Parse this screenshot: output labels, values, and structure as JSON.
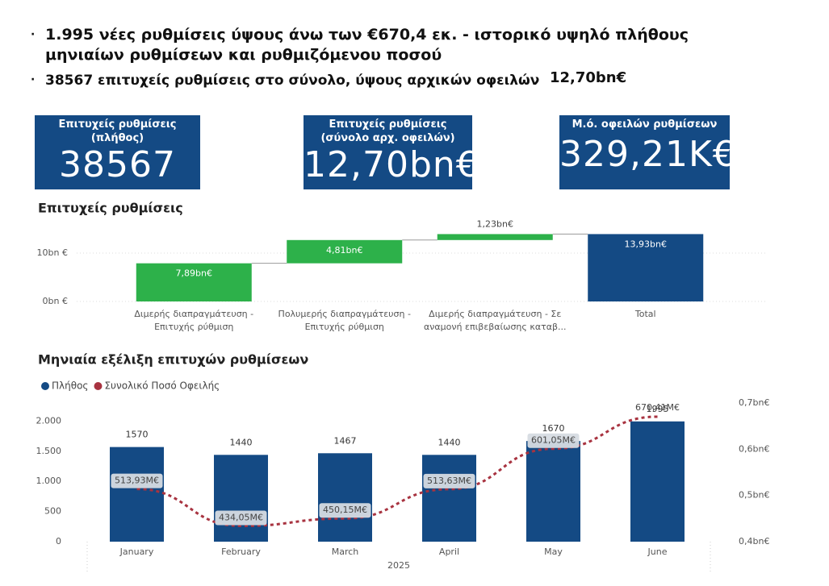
{
  "bullets": [
    {
      "text": "1.995 νέες ρυθμίσεις ύψους άνω των €670,4 εκ. - ιστορικό υψηλό πλήθους μηνιαίων ρυθμίσεων και  ρυθμιζόμενου ποσού"
    },
    {
      "text": "38567 επιτυχείς ρυθμίσεις στο σύνολο, ύψους αρχικών οφειλών",
      "highlight": "12,70bn€"
    }
  ],
  "kpis": [
    {
      "title": "Επιτυχείς ρυθμίσεις (πλήθος)",
      "value": "38567"
    },
    {
      "title": "Επιτυχείς ρυθμίσεις (σύνολο αρχ. οφειλών)",
      "value": "12,70bn€"
    },
    {
      "title": "Μ.ό. οφειλών ρυθμίσεων",
      "value": "329,21K€"
    }
  ],
  "chart_data": [
    {
      "type": "waterfall",
      "title": "Επιτυχείς ρυθμίσεις",
      "categories": [
        "Διμερής διαπραγμάτευση - Επιτυχής ρύθμιση",
        "Πολυμερής διαπραγμάτευση - Επιτυχής ρύθμιση",
        "Διμερής διαπραγμάτευση - Σε αναμονή επιβεβαίωσης καταβ...",
        "Total"
      ],
      "values": [
        7.89,
        4.81,
        1.23,
        13.93
      ],
      "value_labels": [
        "7,89bn€",
        "4,81bn€",
        "1,23bn€",
        "13,93bn€"
      ],
      "is_total": [
        false,
        false,
        false,
        true
      ],
      "colors": [
        "#2db14a",
        "#2db14a",
        "#2db14a",
        "#144a84"
      ],
      "ylim": [
        0,
        14
      ],
      "yticks": [
        {
          "value": 0,
          "label": "0bn €"
        },
        {
          "value": 10,
          "label": "10bn €"
        }
      ],
      "grid": true
    },
    {
      "type": "combo",
      "title": "Μηνιαία εξέλιξη επιτυχών ρυθμίσεων",
      "categories": [
        "January",
        "February",
        "March",
        "April",
        "May",
        "June"
      ],
      "x_label": "2025",
      "series": [
        {
          "name": "Πλήθος",
          "color": "#144a84",
          "kind": "bar",
          "values": [
            1570,
            1440,
            1467,
            1440,
            1670,
            1995
          ]
        },
        {
          "name": "Συνολικό Ποσό Οφειλής",
          "color": "#a83340",
          "kind": "line",
          "axis": "y2",
          "values": [
            0.51393,
            0.43405,
            0.45015,
            0.51363,
            0.60105,
            0.67041
          ],
          "value_labels": [
            "513,93M€",
            "434,05M€",
            "450,15M€",
            "513,63M€",
            "601,05M€",
            "670,41M€"
          ]
        }
      ],
      "ylim": [
        0,
        2300
      ],
      "yticks": [
        0,
        500,
        {
          "value": 1000,
          "label": "1.000"
        },
        {
          "value": 1500,
          "label": "1.500"
        },
        {
          "value": 2000,
          "label": "2.000"
        }
      ],
      "y2lim": [
        0.4,
        0.7
      ],
      "y2ticks": [
        {
          "value": 0.4,
          "label": "0,4bn€"
        },
        {
          "value": 0.5,
          "label": "0,5bn€"
        },
        {
          "value": 0.6,
          "label": "0,6bn€"
        },
        {
          "value": 0.7,
          "label": "0,7bn€"
        }
      ],
      "legend": "top-left"
    }
  ]
}
